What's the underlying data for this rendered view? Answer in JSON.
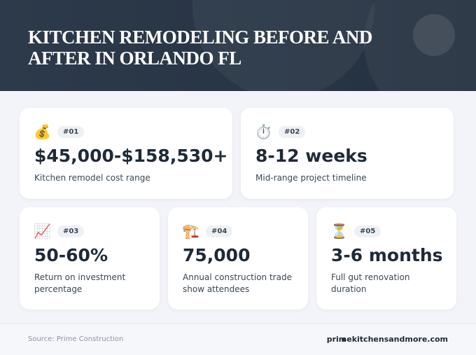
{
  "header": {
    "title": "Kitchen Remodeling Before and After in Orlando FL"
  },
  "cards": [
    {
      "icon": "💰",
      "badge": "#01",
      "value": "$45,000-$158,530+",
      "label": "Kitchen remodel cost range"
    },
    {
      "icon": "⏱️",
      "badge": "#02",
      "value": "8-12 weeks",
      "label": "Mid-range project timeline"
    },
    {
      "icon": "📈",
      "badge": "#03",
      "value": "50-60%",
      "label": "Return on investment percentage"
    },
    {
      "icon": "🏗️",
      "badge": "#04",
      "value": "75,000",
      "label": "Annual construction trade show attendees"
    },
    {
      "icon": "⏳",
      "badge": "#05",
      "value": "3-6 months",
      "label": "Full gut renovation duration"
    }
  ],
  "footer": {
    "source": "Source: Prime Construction",
    "website": "primekitchensandmore.com"
  }
}
